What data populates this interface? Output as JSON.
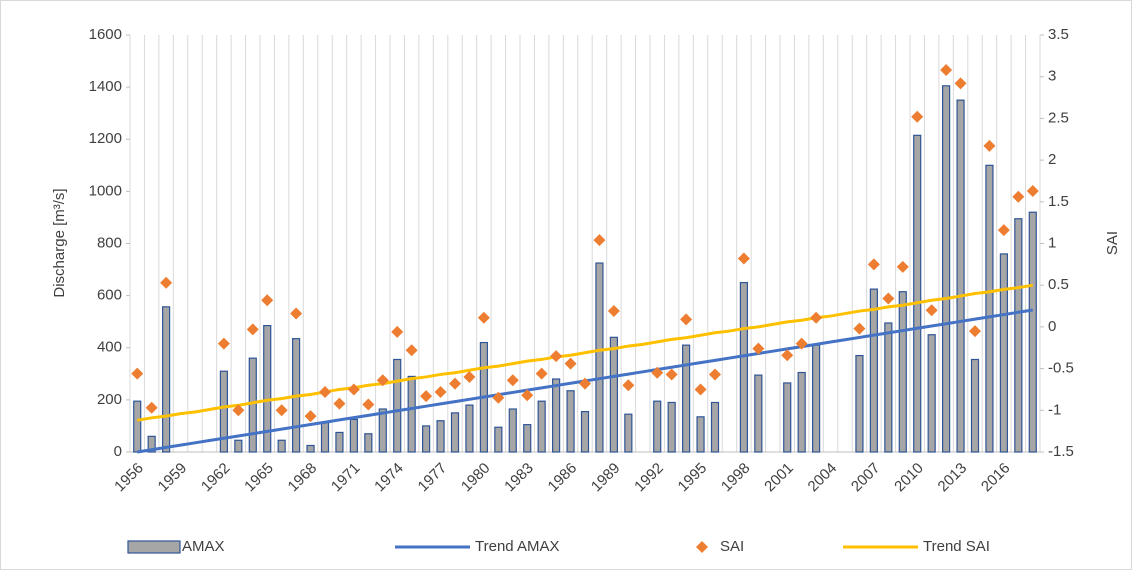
{
  "chart_data": {
    "type": "bar",
    "ylabel": "Discharge  [m³/s]",
    "y2label": "SAI",
    "categories": [
      "1956",
      null,
      null,
      "1959",
      null,
      null,
      "1962",
      null,
      null,
      "1965",
      null,
      null,
      "1968",
      null,
      null,
      "1971",
      null,
      null,
      "1974",
      null,
      null,
      "1977",
      null,
      null,
      "1980",
      null,
      null,
      "1983",
      null,
      null,
      "1986",
      null,
      null,
      "1989",
      null,
      null,
      "1992",
      null,
      null,
      "1995",
      null,
      null,
      "1998",
      null,
      null,
      "2001",
      null,
      null,
      "2004",
      null,
      null,
      "2007",
      null,
      null,
      "2010",
      null,
      null,
      "2013",
      null,
      null,
      "2016",
      null,
      null
    ],
    "ylim": [
      0,
      1600
    ],
    "yticks": [
      0,
      200,
      400,
      600,
      800,
      1000,
      1200,
      1400,
      1600
    ],
    "y2lim": [
      -1.5,
      3.5
    ],
    "y2ticks": [
      -1.5,
      -1,
      -0.5,
      0,
      0.5,
      1,
      1.5,
      2,
      2.5,
      3,
      3.5
    ],
    "grid": true,
    "series": [
      {
        "name": "AMAX",
        "type": "bar",
        "color": "#a6a6a6",
        "edgecolor": "#2f5597",
        "values": [
          195,
          60,
          557,
          null,
          null,
          null,
          310,
          45,
          360,
          485,
          45,
          435,
          25,
          115,
          75,
          125,
          70,
          165,
          355,
          290,
          100,
          120,
          150,
          180,
          420,
          95,
          165,
          105,
          195,
          280,
          235,
          155,
          725,
          440,
          145,
          null,
          195,
          190,
          410,
          135,
          190,
          null,
          650,
          295,
          null,
          265,
          305,
          410,
          null,
          null,
          370,
          625,
          495,
          615,
          1215,
          450,
          1405,
          1350,
          355,
          1100,
          760,
          895,
          920
        ]
      },
      {
        "name": "Trend AMAX",
        "type": "line",
        "color": "#4472c4",
        "values": [
          0,
          8.8,
          17.6,
          26.4,
          35.2,
          44,
          52.7,
          61.5,
          70.3,
          79.1,
          87.9,
          96.7,
          105.5,
          114.3,
          123.1,
          131.9,
          140.6,
          149.4,
          158.2,
          167,
          175.8,
          184.6,
          193.4,
          202.2,
          211,
          219.8,
          228.5,
          237.3,
          246.1,
          254.9,
          263.7,
          272.5,
          281.3,
          290.1,
          298.9,
          307.7,
          316.4,
          325.2,
          334,
          342.8,
          351.6,
          360.4,
          369.2,
          378,
          386.8,
          395.6,
          404.3,
          413.1,
          421.9,
          430.7,
          439.5,
          448.3,
          457.1,
          465.9,
          474.7,
          483.5,
          492.2,
          501,
          509.8,
          518.6,
          527.4,
          536.2,
          545
        ]
      },
      {
        "name": "SAI",
        "type": "scatter",
        "axis": "y2",
        "color": "#ed7d31",
        "values": [
          -0.56,
          -0.97,
          0.53,
          null,
          null,
          null,
          -0.2,
          -1.0,
          -0.03,
          0.32,
          -1.0,
          0.16,
          -1.07,
          -0.78,
          -0.92,
          -0.75,
          -0.93,
          -0.64,
          -0.06,
          -0.28,
          -0.83,
          -0.78,
          -0.68,
          -0.6,
          0.11,
          -0.85,
          -0.64,
          -0.82,
          -0.56,
          -0.35,
          -0.44,
          -0.68,
          1.04,
          0.19,
          -0.7,
          null,
          -0.55,
          -0.57,
          0.09,
          -0.75,
          -0.57,
          null,
          0.82,
          -0.26,
          null,
          -0.34,
          -0.2,
          0.11,
          null,
          null,
          -0.02,
          0.75,
          0.34,
          0.72,
          2.52,
          0.2,
          3.08,
          2.92,
          -0.05,
          2.17,
          1.16,
          1.56,
          1.63
        ]
      },
      {
        "name": "Trend SAI",
        "type": "line",
        "axis": "y2",
        "color": "#ffc000",
        "values": [
          -1.12,
          -1.09,
          -1.07,
          -1.04,
          -1.02,
          -0.99,
          -0.96,
          -0.94,
          -0.91,
          -0.88,
          -0.86,
          -0.83,
          -0.81,
          -0.78,
          -0.75,
          -0.73,
          -0.7,
          -0.68,
          -0.65,
          -0.62,
          -0.6,
          -0.57,
          -0.55,
          -0.52,
          -0.49,
          -0.47,
          -0.44,
          -0.41,
          -0.39,
          -0.36,
          -0.34,
          -0.31,
          -0.28,
          -0.26,
          -0.23,
          -0.21,
          -0.18,
          -0.15,
          -0.13,
          -0.1,
          -0.07,
          -0.05,
          -0.02,
          0,
          0.03,
          0.06,
          0.08,
          0.11,
          0.13,
          0.16,
          0.19,
          0.21,
          0.24,
          0.26,
          0.29,
          0.32,
          0.34,
          0.37,
          0.4,
          0.42,
          0.45,
          0.47,
          0.5
        ]
      }
    ]
  }
}
